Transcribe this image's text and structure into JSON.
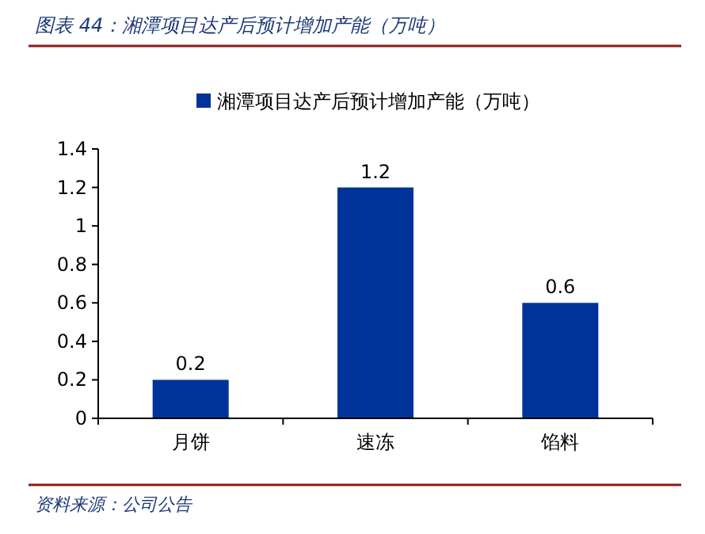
{
  "chart_data": {
    "type": "bar",
    "title": "图表 44：湘潭项目达产后预计增加产能（万吨）",
    "categories": [
      "月饼",
      "速冻",
      "馅料"
    ],
    "series": [
      {
        "name": "湘潭项目达产后预计增加产能（万吨）",
        "color": "#003399",
        "values": [
          0.2,
          1.2,
          0.6
        ]
      }
    ],
    "ylim": [
      0,
      1.4
    ],
    "yticks": [
      0,
      0.2,
      0.4,
      0.6,
      0.8,
      1,
      1.2,
      1.4
    ],
    "data_labels": true,
    "legend": "top",
    "annotations": [
      "资料来源：公司公告"
    ]
  }
}
